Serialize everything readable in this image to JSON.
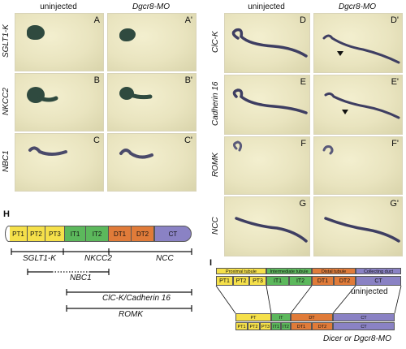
{
  "figure": {
    "left_columns": {
      "col1": "uninjected",
      "col2": "Dgcr8-MO"
    },
    "right_columns": {
      "col1": "uninjected",
      "col2": "Dgcr8-MO"
    },
    "left_rows": [
      {
        "gene": "SGLT1-K",
        "a": "A",
        "b": "A'"
      },
      {
        "gene": "NKCC2",
        "a": "B",
        "b": "B'"
      },
      {
        "gene": "NBC1",
        "a": "C",
        "b": "C'"
      }
    ],
    "right_rows": [
      {
        "gene": "ClC-K",
        "a": "D",
        "b": "D'"
      },
      {
        "gene": "Cadherin 16",
        "a": "E",
        "b": "E'"
      },
      {
        "gene": "ROMK",
        "a": "F",
        "b": "F'"
      },
      {
        "gene": "NCC",
        "a": "G",
        "b": "G'"
      }
    ],
    "panel_h": {
      "letter": "H",
      "segments": [
        {
          "label": "PT1",
          "color": "#f5e04a"
        },
        {
          "label": "PT2",
          "color": "#f5e04a"
        },
        {
          "label": "PT3",
          "color": "#f5e04a"
        },
        {
          "label": "IT1",
          "color": "#5cb85c"
        },
        {
          "label": "IT2",
          "color": "#5cb85c"
        },
        {
          "label": "DT1",
          "color": "#e07b39"
        },
        {
          "label": "DT2",
          "color": "#e07b39"
        },
        {
          "label": "CT",
          "color": "#8a82c4"
        }
      ],
      "ranges": [
        "SGLT1-K",
        "NKCC2",
        "NCC",
        "NBC1",
        "ClC-K/Cadherin 16",
        "ROMK"
      ]
    },
    "panel_i": {
      "letter": "I",
      "top_headers": [
        {
          "label": "Proximal tubule",
          "color": "#f5e04a"
        },
        {
          "label": "Intermediate tubule",
          "color": "#5cb85c"
        },
        {
          "label": "Distal tubule",
          "color": "#e07b39"
        },
        {
          "label": "Collecting duct",
          "color": "#8a82c4"
        }
      ],
      "top_segments": [
        "PT1",
        "PT2",
        "PT3",
        "IT1",
        "IT2",
        "DT1",
        "DT2",
        "CT"
      ],
      "top_caption": "uninjected",
      "bottom_headers": [
        "PT",
        "IT",
        "DT",
        "CT"
      ],
      "bottom_segments": [
        "PT1",
        "PT2",
        "PT3",
        "IT1",
        "IT2",
        "DT1",
        "DT2",
        "CT"
      ],
      "bottom_caption": "Dicer or Dgcr8-MO"
    }
  }
}
